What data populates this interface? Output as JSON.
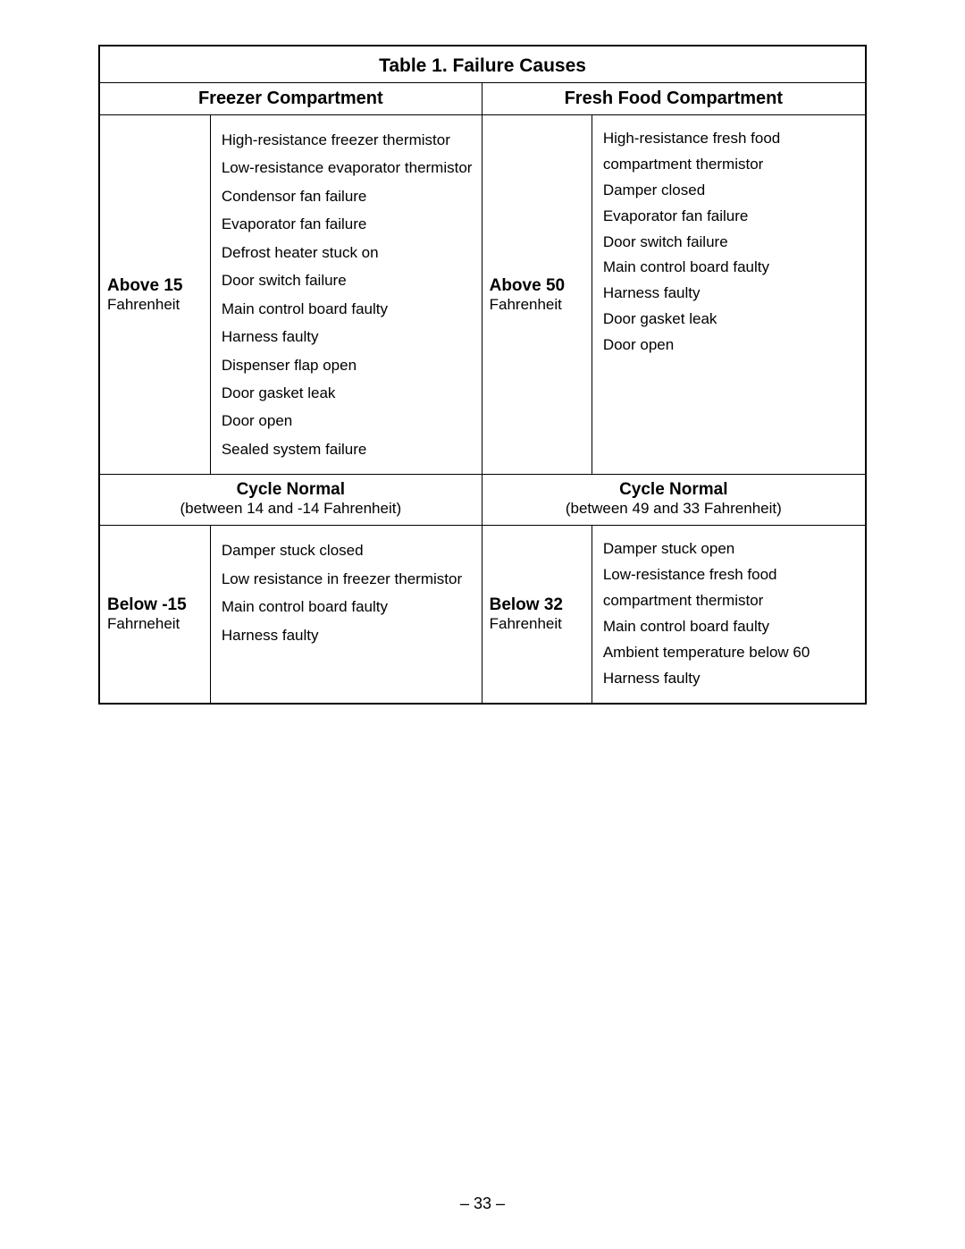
{
  "table": {
    "title": "Table 1.   Failure Causes",
    "columns": {
      "freezer": "Freezer Compartment",
      "fresh": "Fresh Food Compartment"
    },
    "freezer": {
      "above": {
        "label": "Above 15",
        "unit": "Fahrenheit",
        "causes": [
          "High-resistance freezer thermistor",
          "Low-resistance evaporator thermistor",
          "Condensor fan failure",
          "Evaporator fan failure",
          "Defrost heater stuck on",
          "Door switch failure",
          "Main control board faulty",
          "Harness faulty",
          "Dispenser flap open",
          "Door gasket leak",
          "Door open",
          "Sealed system failure"
        ]
      },
      "cycle": {
        "title": "Cycle Normal",
        "sub": "(between 14 and -14  Fahrenheit)"
      },
      "below": {
        "label": "Below -15",
        "unit": "Fahrneheit",
        "causes": [
          "Damper stuck closed",
          "Low resistance in freezer thermistor",
          "Main control board faulty",
          "Harness faulty"
        ]
      }
    },
    "fresh": {
      "above": {
        "label": "Above 50",
        "unit": "Fahrenheit",
        "causes": [
          "High-resistance fresh food compartment thermistor",
          "Damper closed",
          "Evaporator fan failure",
          "Door switch failure",
          "Main control board faulty",
          "Harness faulty",
          "Door gasket leak",
          "Door open"
        ]
      },
      "cycle": {
        "title": "Cycle Normal",
        "sub": "(between 49 and 33  Fahrenheit)"
      },
      "below": {
        "label": "Below 32",
        "unit": "Fahrenheit",
        "causes": [
          "Damper stuck open",
          "Low-resistance fresh food compartment thermistor",
          "Main control board faulty",
          "Ambient temperature below 60",
          "Harness faulty"
        ]
      }
    }
  },
  "page_number": "– 33 –"
}
